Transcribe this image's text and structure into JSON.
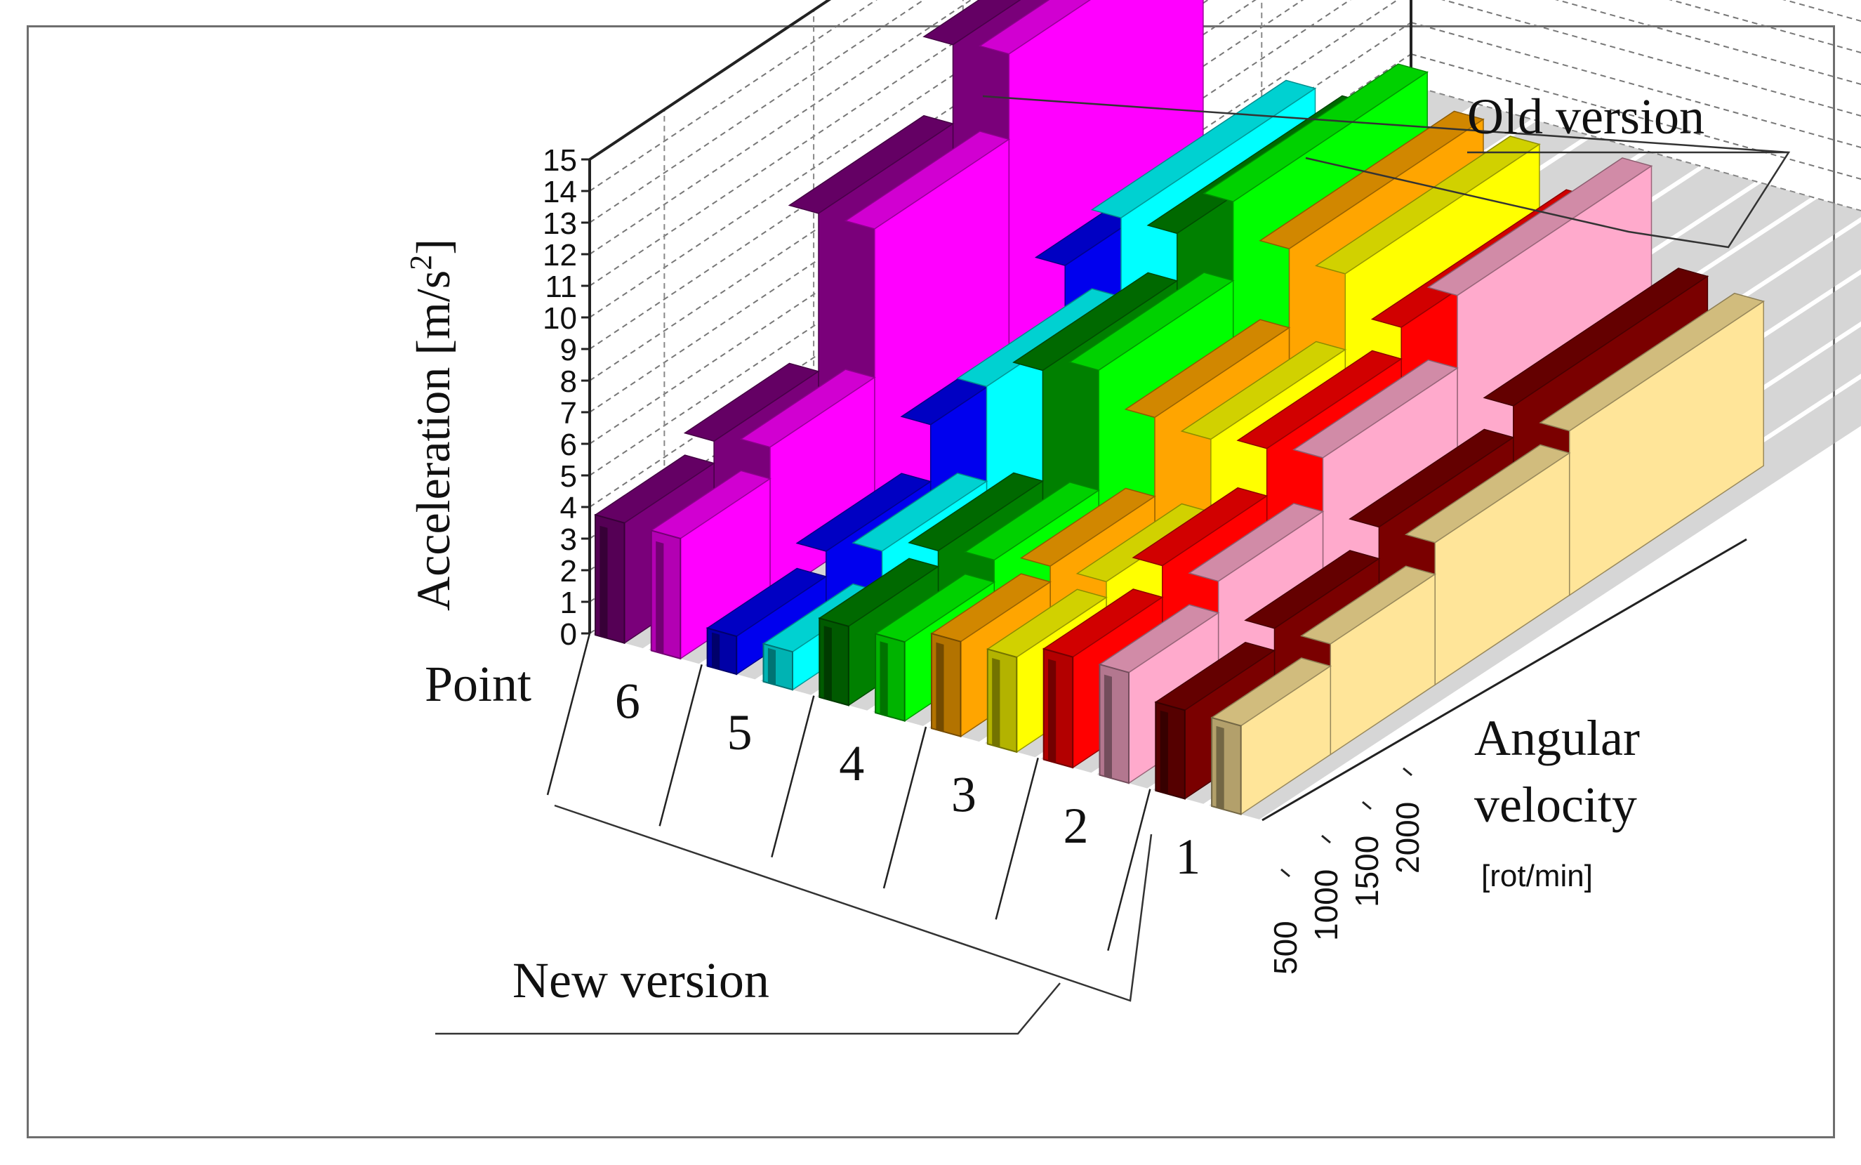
{
  "chart_data": {
    "type": "bar3d",
    "title": "",
    "zlabel": "Acceleration [m/s",
    "zlabel_sup": "2",
    "zlabel_close": "]",
    "zlim": [
      0,
      15
    ],
    "zticks": [
      "0",
      "1",
      "2",
      "3",
      "4",
      "5",
      "6",
      "7",
      "8",
      "9",
      "10",
      "11",
      "12",
      "13",
      "14",
      "15"
    ],
    "xlabel": "Point",
    "points": [
      "6",
      "5",
      "4",
      "3",
      "2",
      "1"
    ],
    "ylabel_line1": "Angular",
    "ylabel_line2": "velocity",
    "ylabel_unit": "[rot/min]",
    "yticks": [
      "500",
      "1000",
      "1500",
      "2000"
    ],
    "version_old": "Old version",
    "version_new": "New version",
    "series": [
      {
        "point": "6",
        "version": "New version",
        "color": "#7a007a",
        "values": [
          3.8,
          4.5,
          9.5,
          12.0
        ]
      },
      {
        "point": "6",
        "version": "Old version",
        "color": "#ff00ff",
        "values": [
          3.8,
          4.8,
          9.5,
          12.2
        ]
      },
      {
        "point": "5",
        "version": "New version",
        "color": "#0000ee",
        "values": [
          1.2,
          2.0,
          3.8,
          6.0
        ]
      },
      {
        "point": "5",
        "version": "Old version",
        "color": "#00ffff",
        "values": [
          1.2,
          2.5,
          5.5,
          8.0
        ]
      },
      {
        "point": "4",
        "version": "New version",
        "color": "#008000",
        "values": [
          2.5,
          3.0,
          6.5,
          8.0
        ]
      },
      {
        "point": "4",
        "version": "Old version",
        "color": "#00ff00",
        "values": [
          2.5,
          3.2,
          7.0,
          9.5
        ]
      },
      {
        "point": "3",
        "version": "New version",
        "color": "#ffa500",
        "values": [
          3.0,
          3.5,
          6.0,
          8.5
        ]
      },
      {
        "point": "3",
        "version": "Old version",
        "color": "#ffff00",
        "values": [
          3.0,
          3.5,
          5.8,
          8.2
        ]
      },
      {
        "point": "2",
        "version": "New version",
        "color": "#ff0000",
        "values": [
          3.5,
          4.5,
          6.0,
          7.0
        ]
      },
      {
        "point": "2",
        "version": "Old version",
        "color": "#ffaacc",
        "values": [
          3.5,
          4.5,
          6.2,
          8.5
        ]
      },
      {
        "point": "1",
        "version": "New version",
        "color": "#7a0000",
        "values": [
          2.8,
          3.5,
          4.5,
          5.5
        ]
      },
      {
        "point": "1",
        "version": "Old version",
        "color": "#ffe599",
        "values": [
          2.8,
          3.5,
          4.5,
          5.2
        ]
      }
    ]
  }
}
